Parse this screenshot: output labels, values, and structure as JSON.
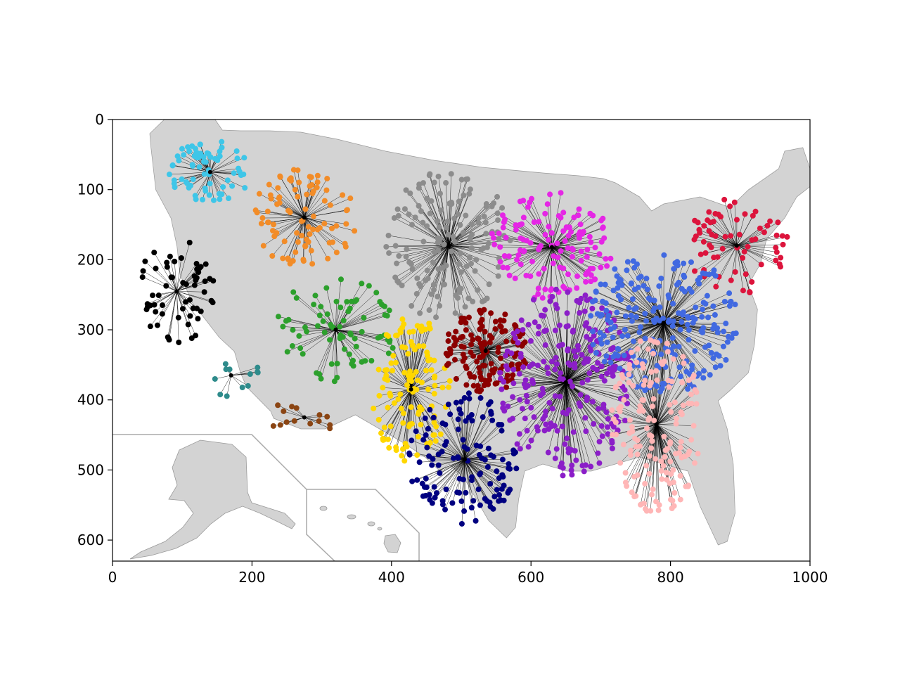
{
  "chart_data": {
    "type": "scatter",
    "title": "",
    "xlabel": "",
    "ylabel": "",
    "xlim": [
      0,
      1000
    ],
    "ylim": [
      630,
      0
    ],
    "x_ticks": [
      0,
      200,
      400,
      600,
      800,
      1000
    ],
    "y_ticks": [
      0,
      100,
      200,
      300,
      400,
      500,
      600
    ],
    "x_tick_labels": [
      "0",
      "200",
      "400",
      "600",
      "800",
      "1000"
    ],
    "y_tick_labels": [
      "0",
      "100",
      "200",
      "300",
      "400",
      "500",
      "600"
    ],
    "grid": false,
    "legend": null,
    "background_map": "United States counties (lower 48 with Alaska and Hawaii insets), filled light gray",
    "clusters": [
      {
        "color": "#3ec6e8",
        "center": [
          140,
          75
        ],
        "spread": [
          60,
          45
        ],
        "n": 70
      },
      {
        "color": "#f28c28",
        "center": [
          275,
          140
        ],
        "spread": [
          75,
          70
        ],
        "n": 90
      },
      {
        "color": "#8c8c8c",
        "center": [
          482,
          180
        ],
        "spread": [
          90,
          110
        ],
        "n": 150
      },
      {
        "color": "#e526e5",
        "center": [
          630,
          182
        ],
        "spread": [
          90,
          80
        ],
        "n": 130
      },
      {
        "color": "#dc143c",
        "center": [
          895,
          180
        ],
        "spread": [
          75,
          70
        ],
        "n": 70
      },
      {
        "color": "#000000",
        "center": [
          92,
          245
        ],
        "spread": [
          55,
          80
        ],
        "n": 60
      },
      {
        "color": "#2ca02c",
        "center": [
          320,
          300
        ],
        "spread": [
          90,
          75
        ],
        "n": 80
      },
      {
        "color": "#2e8b8b",
        "center": [
          170,
          365
        ],
        "spread": [
          45,
          30
        ],
        "n": 12
      },
      {
        "color": "#8b4513",
        "center": [
          275,
          425
        ],
        "spread": [
          55,
          25
        ],
        "n": 14
      },
      {
        "color": "#ffd700",
        "center": [
          428,
          385
        ],
        "spread": [
          60,
          105
        ],
        "n": 120
      },
      {
        "color": "#8b0000",
        "center": [
          535,
          330
        ],
        "spread": [
          60,
          60
        ],
        "n": 140
      },
      {
        "color": "#000080",
        "center": [
          505,
          485
        ],
        "spread": [
          80,
          95
        ],
        "n": 130
      },
      {
        "color": "#8b1ec8",
        "center": [
          650,
          375
        ],
        "spread": [
          95,
          135
        ],
        "n": 250
      },
      {
        "color": "#4169e1",
        "center": [
          790,
          290
        ],
        "spread": [
          110,
          100
        ],
        "n": 230
      },
      {
        "color": "#ffb6b6",
        "center": [
          780,
          435
        ],
        "spread": [
          65,
          130
        ],
        "n": 160
      }
    ]
  }
}
